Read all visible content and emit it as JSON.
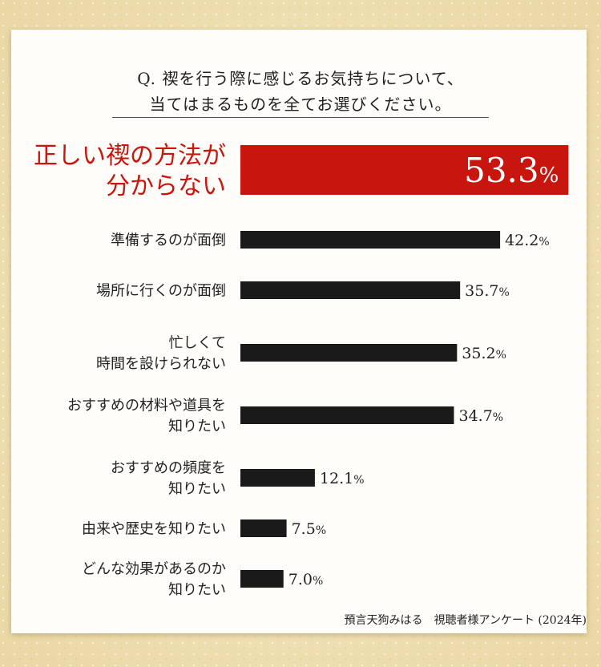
{
  "question": {
    "line1": "Q. 禊を行う際に感じるお気持ちについて、",
    "line2": "当てはまるものを全てお選びください。"
  },
  "source": "預言天狗みはる　視聴者様アンケート (2024年)",
  "colors": {
    "highlight": "#c8160f",
    "bar": "#1a1a1a",
    "label": "#222222",
    "card": "#fffdf9",
    "background": "#efe2b8"
  },
  "chart_data": {
    "type": "bar",
    "orientation": "horizontal",
    "unit": "%",
    "xlim": [
      0,
      55
    ],
    "categories": [
      "正しい禊の方法が\n分からない",
      "準備するのが面倒",
      "場所に行くのが面倒",
      "忙しくて\n時間を設けられない",
      "おすすめの材料や道具を\n知りたい",
      "おすすめの頻度を\n知りたい",
      "由来や歴史を知りたい",
      "どんな効果があるのか\n知りたい"
    ],
    "values": [
      53.3,
      42.2,
      35.7,
      35.2,
      34.7,
      12.1,
      7.5,
      7.0
    ],
    "value_labels": [
      "53.3%",
      "42.2%",
      "35.7%",
      "35.2%",
      "34.7%",
      "12.1%",
      "7.5%",
      "7.0%"
    ],
    "highlight_index": 0
  }
}
